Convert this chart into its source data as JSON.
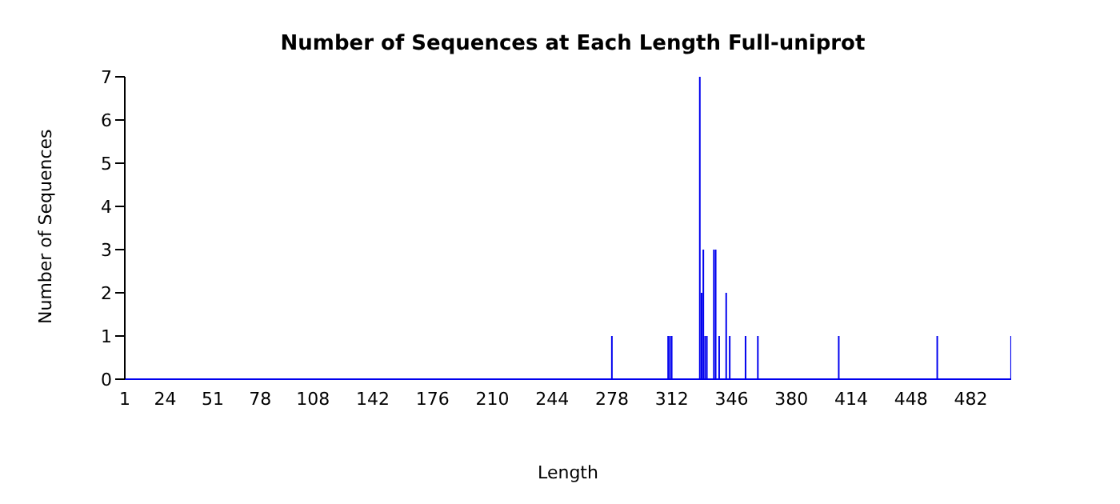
{
  "chart_data": {
    "type": "bar",
    "title": "Number of Sequences at Each Length  Full-uniprot",
    "xlabel": "Length",
    "ylabel": "Number of Sequences",
    "x": [
      278,
      310,
      311,
      312,
      328,
      329,
      330,
      331,
      332,
      336,
      337,
      339,
      343,
      345,
      354,
      361,
      407,
      463,
      505
    ],
    "series": [
      {
        "color": "#0000ee",
        "values": [
          1,
          1,
          1,
          1,
          7,
          2,
          3,
          1,
          1,
          3,
          3,
          1,
          2,
          1,
          1,
          1,
          1,
          1,
          1
        ]
      }
    ],
    "xlim": [
      1,
      505
    ],
    "xticks": [
      1,
      24,
      51,
      78,
      108,
      142,
      176,
      210,
      244,
      278,
      312,
      346,
      380,
      414,
      448,
      482
    ],
    "ylim": [
      0,
      7
    ],
    "yticks": [
      0,
      1,
      2,
      3,
      4,
      5,
      6,
      7
    ],
    "grid": false,
    "legend": false
  }
}
